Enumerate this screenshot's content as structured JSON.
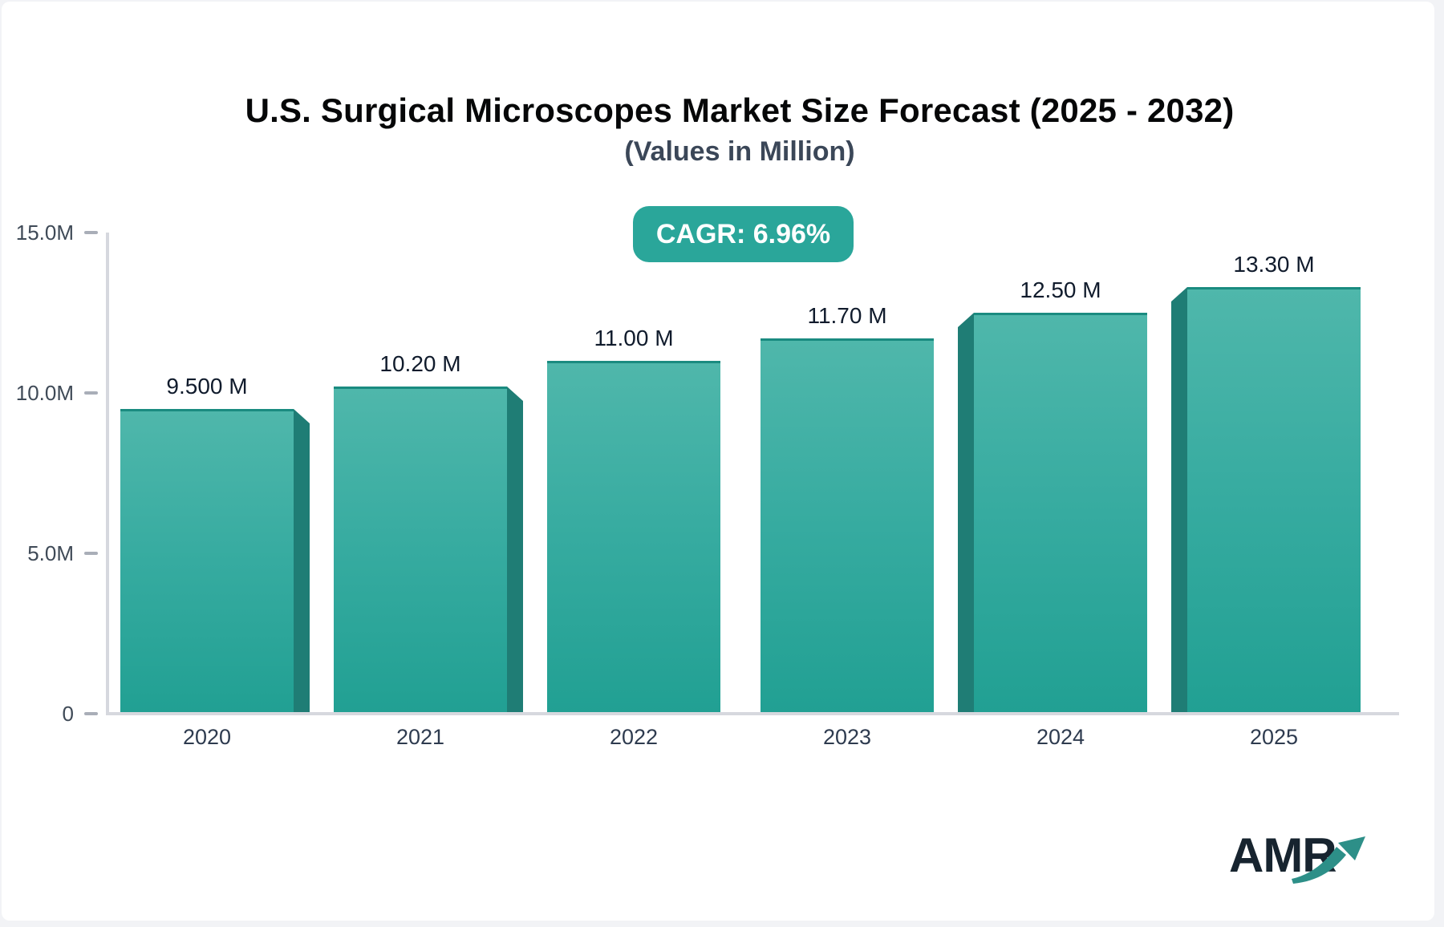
{
  "header": {
    "title": "U.S. Surgical Microscopes Market Size Forecast (2025 - 2032)",
    "subtitle": "(Values in Million)",
    "cagr_badge": "CAGR: 6.96%"
  },
  "chart_data": {
    "type": "bar",
    "title": "U.S. Surgical Microscopes Market Size Forecast (2025 - 2032)",
    "subtitle": "(Values in Million)",
    "cagr_label": "CAGR: 6.96%",
    "categories": [
      "2020",
      "2021",
      "2022",
      "2023",
      "2024",
      "2025"
    ],
    "values": [
      9.5,
      10.2,
      11.0,
      11.7,
      12.5,
      13.3
    ],
    "value_labels": [
      "9.500 M",
      "10.20 M",
      "11.00 M",
      "11.70 M",
      "12.50 M",
      "13.30 M"
    ],
    "ylim": [
      0,
      15
    ],
    "yticks": [
      {
        "value": 15,
        "label": "15.0M"
      },
      {
        "value": 10,
        "label": "10.0M"
      },
      {
        "value": 5,
        "label": "5.0M"
      },
      {
        "value": 0,
        "label": "0"
      }
    ],
    "grid": false,
    "legend_position": "none",
    "bar_3d_sides": [
      "right",
      "right",
      "none",
      "none",
      "left",
      "left"
    ]
  },
  "logo": {
    "text": "AMR",
    "arrow_icon": "trend-up-arrow"
  },
  "colors": {
    "page_background": "#f2f3f6",
    "card_background": "#ffffff",
    "title_text": "#060708",
    "subtitle_text": "#3b4758",
    "badge_background": "#2aa69a",
    "badge_text": "#ffffff",
    "axis_line": "#d6d8de",
    "tick_dash": "#a9aeb8",
    "tick_text": "#3f4a57",
    "year_text": "#2e3b4f",
    "value_text": "#101b2c",
    "bar_gradient_top": "#4fb7ab",
    "bar_gradient_bottom": "#21a093",
    "bar_top_edge": "#1a8b80",
    "bar_side_face": "#1f7d75",
    "logo_text": "#17242f",
    "logo_arrow": "#2d8f88"
  }
}
